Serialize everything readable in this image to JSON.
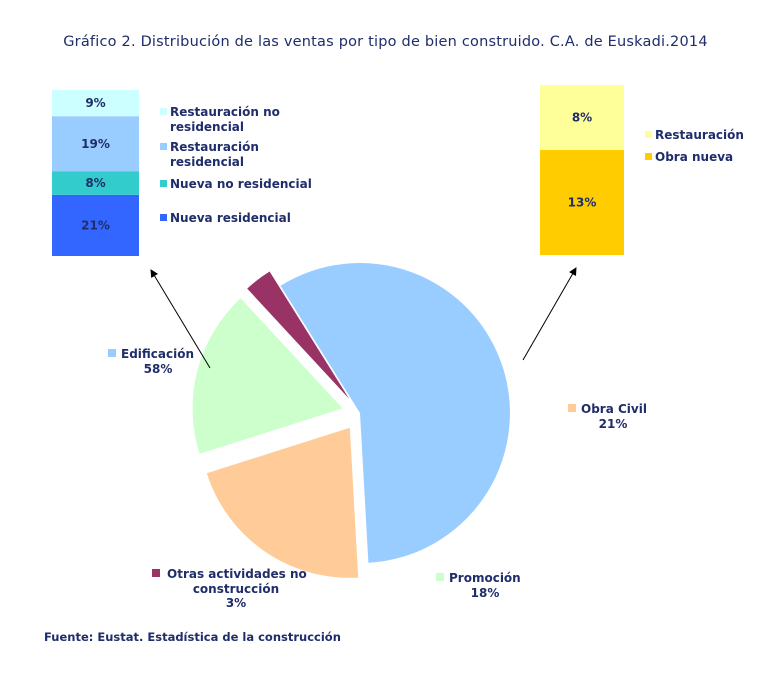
{
  "title": "Gráfico 2. Distribución de las ventas por tipo de bien construido. C.A. de Euskadi.2014",
  "source": "Fuente: Eustat. Estadística de la construcción",
  "chart_data": [
    {
      "type": "pie",
      "slices": [
        {
          "name": "Edificación",
          "value": 58,
          "label": "58%",
          "color": "#99ccff"
        },
        {
          "name": "Obra Civil",
          "value": 21,
          "label": "21%",
          "color": "#ffcc99"
        },
        {
          "name": "Promoción",
          "value": 18,
          "label": "18%",
          "color": "#ccffcc"
        },
        {
          "name": "Otras actividades no construcción",
          "value": 3,
          "label": "3%",
          "color": "#993366"
        }
      ]
    },
    {
      "type": "bar",
      "stacked": true,
      "breakdown_of": "Edificación",
      "segments": [
        {
          "name": "Nueva residencial",
          "value": 21,
          "label": "21%",
          "color": "#3366ff"
        },
        {
          "name": "Nueva no residencial",
          "value": 8,
          "label": "8%",
          "color": "#33cccc"
        },
        {
          "name": "Restauración residencial",
          "value": 19,
          "label": "19%",
          "color": "#99ccff"
        },
        {
          "name": "Restauración no residencial",
          "value": 9,
          "label": "9%",
          "color": "#ccffff"
        }
      ]
    },
    {
      "type": "bar",
      "stacked": true,
      "breakdown_of": "Obra Civil",
      "segments": [
        {
          "name": "Obra nueva",
          "value": 13,
          "label": "13%",
          "color": "#ffcc00"
        },
        {
          "name": "Restauración",
          "value": 8,
          "label": "8%",
          "color": "#ffff99"
        }
      ]
    }
  ]
}
